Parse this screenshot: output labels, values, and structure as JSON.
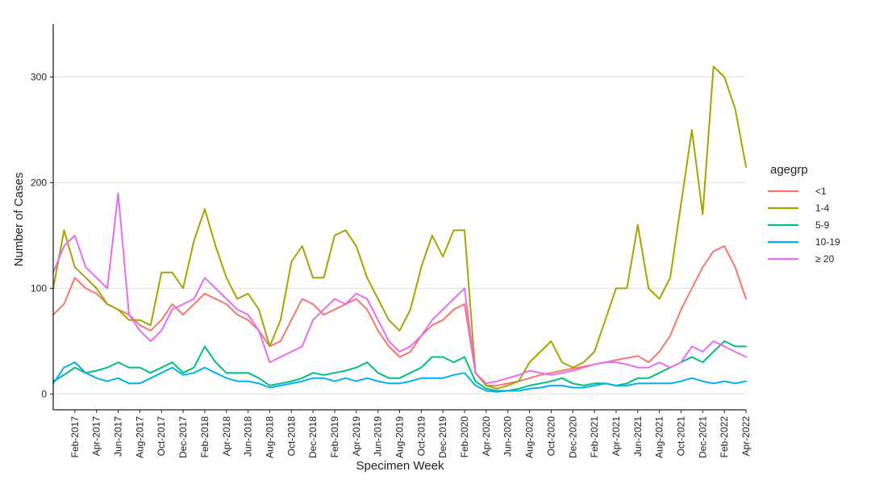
{
  "chart_data": {
    "type": "line",
    "xlabel": "Specimen Week",
    "ylabel": "Number of Cases",
    "ylim": [
      -15,
      350
    ],
    "yticks": [
      0,
      100,
      200,
      300
    ],
    "grid": "horizontal major",
    "legend_title": "agegrp",
    "legend_placement": "right",
    "x": [
      "2016-12",
      "2017-01",
      "2017-02",
      "2017-03",
      "2017-04",
      "2017-05",
      "2017-06",
      "2017-07",
      "2017-08",
      "2017-09",
      "2017-10",
      "2017-11",
      "2017-12",
      "2018-01",
      "2018-02",
      "2018-03",
      "2018-04",
      "2018-05",
      "2018-06",
      "2018-07",
      "2018-08",
      "2018-09",
      "2018-10",
      "2018-11",
      "2018-12",
      "2019-01",
      "2019-02",
      "2019-03",
      "2019-04",
      "2019-05",
      "2019-06",
      "2019-07",
      "2019-08",
      "2019-09",
      "2019-10",
      "2019-11",
      "2019-12",
      "2020-01",
      "2020-02",
      "2020-03",
      "2020-04",
      "2020-05",
      "2020-06",
      "2020-07",
      "2020-08",
      "2020-09",
      "2020-10",
      "2020-11",
      "2020-12",
      "2021-01",
      "2021-02",
      "2021-03",
      "2021-04",
      "2021-05",
      "2021-06",
      "2021-07",
      "2021-08",
      "2021-09",
      "2021-10",
      "2021-11",
      "2021-12",
      "2022-01",
      "2022-02",
      "2022-03",
      "2022-04"
    ],
    "x_tick_labels": [
      "Feb-2017",
      "Apr-2017",
      "Jun-2017",
      "Aug-2017",
      "Oct-2017",
      "Dec-2017",
      "Feb-2018",
      "Apr-2018",
      "Jun-2018",
      "Aug-2018",
      "Oct-2018",
      "Dec-2018",
      "Feb-2019",
      "Apr-2019",
      "Jun-2019",
      "Aug-2019",
      "Oct-2019",
      "Dec-2019",
      "Feb-2020",
      "Apr-2020",
      "Jun-2020",
      "Aug-2020",
      "Oct-2020",
      "Dec-2020",
      "Feb-2021",
      "Apr-2021",
      "Jun-2021",
      "Aug-2021",
      "Oct-2021",
      "Dec-2021",
      "Feb-2022",
      "Apr-2022"
    ],
    "x_tick_positions": [
      "2017-02",
      "2017-04",
      "2017-06",
      "2017-08",
      "2017-10",
      "2017-12",
      "2018-02",
      "2018-04",
      "2018-06",
      "2018-08",
      "2018-10",
      "2018-12",
      "2019-02",
      "2019-04",
      "2019-06",
      "2019-08",
      "2019-10",
      "2019-12",
      "2020-02",
      "2020-04",
      "2020-06",
      "2020-08",
      "2020-10",
      "2020-12",
      "2021-02",
      "2021-04",
      "2021-06",
      "2021-08",
      "2021-10",
      "2021-12",
      "2022-02",
      "2022-04"
    ],
    "series": [
      {
        "name": "<1",
        "color": "#F8766D",
        "values": [
          75,
          85,
          110,
          100,
          95,
          85,
          80,
          75,
          65,
          60,
          70,
          85,
          75,
          85,
          95,
          90,
          85,
          75,
          70,
          60,
          45,
          50,
          70,
          90,
          85,
          75,
          80,
          85,
          90,
          80,
          60,
          45,
          35,
          40,
          55,
          65,
          70,
          80,
          85,
          20,
          8,
          8,
          10,
          12,
          15,
          18,
          20,
          22,
          24,
          26,
          28,
          30,
          32,
          34,
          36,
          30,
          40,
          55,
          80,
          100,
          120,
          135,
          140,
          120,
          90
        ]
      },
      {
        "name": "1-4",
        "color": "#A3A500",
        "values": [
          100,
          155,
          120,
          110,
          100,
          85,
          80,
          70,
          70,
          65,
          115,
          115,
          100,
          145,
          175,
          140,
          110,
          90,
          95,
          80,
          45,
          70,
          125,
          140,
          110,
          110,
          150,
          155,
          140,
          110,
          90,
          70,
          60,
          80,
          120,
          150,
          130,
          155,
          155,
          20,
          8,
          5,
          8,
          12,
          30,
          40,
          50,
          30,
          25,
          30,
          40,
          70,
          100,
          100,
          160,
          100,
          90,
          110,
          180,
          250,
          170,
          310,
          300,
          270,
          215
        ]
      },
      {
        "name": "5-9",
        "color": "#00BF7D",
        "values": [
          12,
          18,
          25,
          20,
          22,
          25,
          30,
          25,
          25,
          20,
          25,
          30,
          20,
          25,
          45,
          30,
          20,
          20,
          20,
          15,
          8,
          10,
          12,
          15,
          20,
          18,
          20,
          22,
          25,
          30,
          20,
          15,
          15,
          20,
          25,
          35,
          35,
          30,
          35,
          12,
          5,
          3,
          3,
          5,
          8,
          10,
          12,
          15,
          10,
          8,
          10,
          10,
          8,
          10,
          15,
          15,
          20,
          25,
          30,
          35,
          30,
          40,
          50,
          45,
          45
        ]
      },
      {
        "name": "10-19",
        "color": "#00B0F6",
        "values": [
          10,
          25,
          30,
          20,
          15,
          12,
          15,
          10,
          10,
          15,
          20,
          25,
          18,
          20,
          25,
          20,
          15,
          12,
          12,
          10,
          6,
          8,
          10,
          12,
          15,
          15,
          12,
          15,
          12,
          15,
          12,
          10,
          10,
          12,
          15,
          15,
          15,
          18,
          20,
          8,
          3,
          2,
          3,
          3,
          5,
          6,
          8,
          8,
          6,
          6,
          8,
          10,
          8,
          8,
          10,
          10,
          10,
          10,
          12,
          15,
          12,
          10,
          12,
          10,
          12
        ]
      },
      {
        "name": "≥ 20",
        "color": "#E76BF3",
        "values": [
          115,
          140,
          150,
          120,
          110,
          100,
          190,
          75,
          60,
          50,
          60,
          80,
          85,
          90,
          110,
          100,
          90,
          80,
          75,
          60,
          30,
          35,
          40,
          45,
          70,
          80,
          90,
          85,
          95,
          90,
          70,
          50,
          40,
          45,
          55,
          70,
          80,
          90,
          100,
          20,
          10,
          12,
          15,
          18,
          22,
          20,
          18,
          20,
          22,
          25,
          28,
          30,
          30,
          28,
          25,
          25,
          30,
          25,
          30,
          45,
          40,
          50,
          45,
          40,
          35
        ]
      }
    ]
  }
}
